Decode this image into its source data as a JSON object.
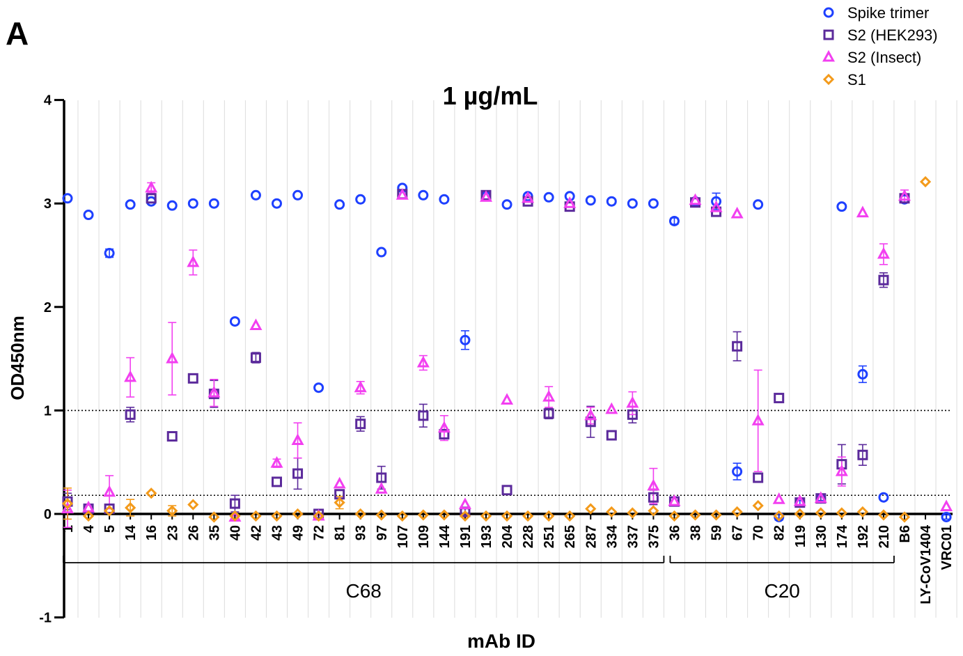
{
  "chart_data": {
    "type": "scatter",
    "panel_label": "A",
    "title": "1 µg/mL",
    "xlabel": "mAb ID",
    "ylabel": "OD450nm",
    "ylim": [
      -1,
      4
    ],
    "yticks": [
      "-1",
      "0",
      "1",
      "2",
      "3",
      "4"
    ],
    "y_tick_values": [
      -1,
      0,
      1,
      2,
      3,
      4
    ],
    "reference_lines": [
      1,
      0.18
    ],
    "grid": "vertical",
    "legend_position": "top-right",
    "categories": [
      "1",
      "4",
      "5",
      "14",
      "16",
      "23",
      "26",
      "35",
      "40",
      "42",
      "43",
      "49",
      "72",
      "81",
      "93",
      "97",
      "107",
      "109",
      "144",
      "191",
      "193",
      "204",
      "228",
      "251",
      "265",
      "287",
      "334",
      "337",
      "375",
      "36",
      "38",
      "59",
      "67",
      "70",
      "82",
      "119",
      "130",
      "174",
      "192",
      "210",
      "B6",
      "LY-CoV1404",
      "VRC01"
    ],
    "groups": [
      {
        "label": "C68",
        "start": "1",
        "end": "375"
      },
      {
        "label": "C20",
        "start": "36",
        "end": "210"
      }
    ],
    "series": [
      {
        "name": "Spike trimer",
        "color": "#1e40ff",
        "marker": "circle",
        "values": [
          3.05,
          2.89,
          2.52,
          2.99,
          3.02,
          2.98,
          3.0,
          3.0,
          1.86,
          3.08,
          3.0,
          3.08,
          1.22,
          2.99,
          3.04,
          2.53,
          3.15,
          3.08,
          3.04,
          1.68,
          3.07,
          2.99,
          3.07,
          3.06,
          3.07,
          3.03,
          3.02,
          3.0,
          3.0,
          2.83,
          3.02,
          3.02,
          0.41,
          2.99,
          -0.03,
          0.11,
          0.15,
          2.97,
          1.35,
          0.16,
          3.04,
          null,
          -0.03
        ],
        "errors": [
          0,
          0,
          0.04,
          0,
          0,
          0,
          0,
          0,
          0,
          0,
          0,
          0,
          0,
          0,
          0,
          0,
          0,
          0,
          0,
          0.09,
          0,
          0,
          0,
          0,
          0,
          0,
          0,
          0,
          0,
          0.03,
          0,
          0.08,
          0.08,
          0,
          0.03,
          0.02,
          0.02,
          0,
          0.08,
          0,
          0,
          null,
          0.02
        ]
      },
      {
        "name": "S2 (HEK293)",
        "color": "#5b2a9b",
        "marker": "square",
        "values": [
          0.12,
          0.05,
          0.05,
          0.96,
          3.05,
          0.75,
          1.31,
          1.16,
          0.1,
          1.51,
          0.31,
          0.39,
          0.0,
          0.19,
          0.87,
          0.35,
          3.09,
          0.95,
          0.77,
          0.02,
          3.08,
          0.23,
          3.02,
          0.97,
          2.97,
          0.89,
          0.76,
          0.96,
          0.16,
          0.12,
          3.01,
          2.92,
          1.62,
          0.35,
          1.12,
          0.11,
          0.15,
          0.48,
          0.57,
          2.26,
          3.05,
          null,
          null
        ],
        "errors": [
          0.08,
          0,
          0,
          0.07,
          0,
          0,
          0,
          0.13,
          0.08,
          0.05,
          0,
          0.15,
          0,
          0,
          0.07,
          0.11,
          0,
          0.11,
          0,
          0.03,
          0,
          0,
          0,
          0.05,
          0,
          0.15,
          0,
          0.08,
          0.07,
          0,
          0,
          0,
          0.14,
          0,
          0,
          0,
          0.03,
          0.19,
          0.1,
          0.07,
          0,
          null,
          null
        ]
      },
      {
        "name": "S2 (Insect)",
        "color": "#f23ff0",
        "marker": "triangle",
        "values": [
          0.05,
          0.06,
          0.21,
          1.32,
          3.15,
          1.5,
          2.43,
          1.17,
          -0.03,
          1.82,
          0.49,
          0.71,
          -0.02,
          0.29,
          1.22,
          0.24,
          3.08,
          1.46,
          0.83,
          0.09,
          3.06,
          1.1,
          3.05,
          1.13,
          3.0,
          0.95,
          1.01,
          1.07,
          0.27,
          0.12,
          3.03,
          2.96,
          2.9,
          0.9,
          0.14,
          0.12,
          0.15,
          0.41,
          2.91,
          2.51,
          3.07,
          null,
          0.07
        ],
        "errors": [
          0.18,
          0,
          0.16,
          0.19,
          0.05,
          0.35,
          0.12,
          0.13,
          0,
          0,
          0.04,
          0.17,
          0,
          0,
          0.06,
          0,
          0,
          0.07,
          0.12,
          0,
          0,
          0,
          0,
          0.1,
          0,
          0.08,
          0,
          0.11,
          0.17,
          0,
          0,
          0,
          0,
          0.49,
          0,
          0,
          0,
          0.14,
          0,
          0.1,
          0.06,
          null,
          0
        ]
      },
      {
        "name": "S1",
        "color": "#f39a1a",
        "marker": "diamond",
        "values": [
          0.1,
          -0.02,
          0.03,
          0.06,
          0.2,
          0.03,
          0.09,
          -0.03,
          -0.02,
          -0.02,
          -0.02,
          0.0,
          -0.02,
          0.11,
          0.0,
          -0.01,
          -0.02,
          -0.01,
          -0.01,
          -0.02,
          -0.02,
          -0.02,
          -0.02,
          -0.02,
          -0.02,
          0.05,
          0.02,
          0.01,
          0.03,
          -0.02,
          -0.01,
          -0.01,
          0.02,
          0.08,
          -0.02,
          0.0,
          0.01,
          0.01,
          0.02,
          -0.01,
          -0.03,
          3.21,
          null
        ],
        "errors": [
          0.15,
          0,
          0,
          0.08,
          0,
          0.05,
          0,
          0,
          0,
          0,
          0,
          0,
          0,
          0.06,
          0,
          0,
          0,
          0,
          0,
          0,
          0,
          0,
          0,
          0,
          0,
          0,
          0,
          0,
          0,
          0,
          0,
          0,
          0,
          0,
          0,
          0,
          0,
          0,
          0,
          0,
          0,
          0,
          null
        ]
      }
    ]
  }
}
